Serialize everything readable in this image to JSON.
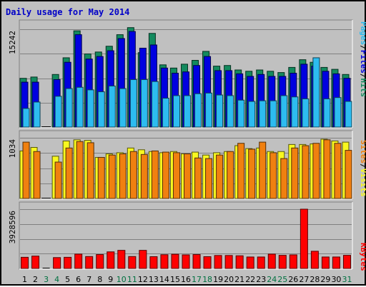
{
  "chart_data": {
    "type": "bar",
    "title": "Daily usage for May 2014",
    "categories": [
      "1",
      "2",
      "3",
      "4",
      "5",
      "6",
      "7",
      "8",
      "9",
      "10",
      "11",
      "12",
      "13",
      "14",
      "15",
      "16",
      "17",
      "18",
      "19",
      "20",
      "21",
      "22",
      "23",
      "24",
      "25",
      "26",
      "27",
      "28",
      "29",
      "30",
      "31"
    ],
    "weekend_days": [
      "3",
      "4",
      "10",
      "11",
      "17",
      "18",
      "24",
      "25",
      "31"
    ],
    "colors": {
      "hits": "#138a5e",
      "files": "#0000e0",
      "pages": "#2dbcf0",
      "visits": "#f8f820",
      "sites": "#f08010",
      "kbytes": "#ff0000",
      "weekend_label": "#007040",
      "weekday_label": "#000000"
    },
    "panels": [
      {
        "id": "hits_files_pages",
        "ytick_label": "15242",
        "ylim": [
          0,
          15242
        ],
        "legend": [
          "Pages",
          "/",
          "Files",
          "/",
          "Hits"
        ],
        "legend_colors": [
          "#2dbcf0",
          "#000000",
          "#0000e0",
          "#000000",
          "#138a5e"
        ],
        "series": [
          {
            "name": "Hits",
            "color": "#138a5e",
            "values": [
              7600,
              7800,
              0,
              8200,
              10800,
              15000,
              11400,
              11700,
              12600,
              14400,
              15500,
              11600,
              14600,
              9700,
              9200,
              9800,
              10400,
              11800,
              9500,
              9600,
              8900,
              8700,
              8900,
              8700,
              8500,
              9300,
              10500,
              10100,
              9300,
              9000,
              8200
            ]
          },
          {
            "name": "Files",
            "color": "#0000e0",
            "values": [
              7000,
              7000,
              0,
              7400,
              10100,
              14400,
              10600,
              11000,
              11900,
              13800,
              14900,
              12300,
              12800,
              9200,
              8400,
              8600,
              9600,
              11000,
              8800,
              8800,
              8300,
              7900,
              8200,
              7900,
              7900,
              8400,
              9800,
              9500,
              8700,
              8300,
              7600
            ]
          },
          {
            "name": "Pages",
            "color": "#2dbcf0",
            "values": [
              2900,
              3900,
              0,
              4800,
              6000,
              6200,
              5800,
              5500,
              6400,
              6000,
              7400,
              7400,
              7100,
              4500,
              4900,
              4900,
              5200,
              5300,
              5000,
              4900,
              4200,
              4000,
              4100,
              4100,
              4900,
              4700,
              4400,
              10800,
              4400,
              4600,
              4000
            ]
          }
        ]
      },
      {
        "id": "visits_sites",
        "ytick_label": "1034",
        "ylim": [
          0,
          1034
        ],
        "legend": [
          "Sites",
          "/",
          "Visits"
        ],
        "legend_colors": [
          "#f08010",
          "#000000",
          "#f8f820"
        ],
        "series": [
          {
            "name": "Visits",
            "color": "#f8f820",
            "values": [
              810,
              870,
              0,
              720,
              980,
              1000,
              990,
              700,
              760,
              780,
              860,
              830,
              800,
              780,
              800,
              760,
              790,
              740,
              780,
              800,
              900,
              850,
              860,
              800,
              800,
              920,
              920,
              930,
              1010,
              980,
              960
            ]
          },
          {
            "name": "Sites",
            "color": "#f08010",
            "values": [
              960,
              800,
              0,
              620,
              860,
              970,
              950,
              700,
              740,
              760,
              800,
              750,
              810,
              790,
              780,
              760,
              690,
              680,
              740,
              800,
              940,
              840,
              960,
              780,
              680,
              860,
              900,
              940,
              1000,
              940,
              820
            ]
          }
        ]
      },
      {
        "id": "kbytes",
        "ytick_label": "3928596",
        "ylim": [
          0,
          3928596
        ],
        "legend": [
          "KBytes"
        ],
        "legend_colors": [
          "#ff0000"
        ],
        "series": [
          {
            "name": "KBytes",
            "color": "#ff0000",
            "values": [
              740000,
              820000,
              0,
              720000,
              740000,
              950000,
              790000,
              920000,
              1100000,
              1200000,
              790000,
              1200000,
              780000,
              910000,
              940000,
              900000,
              920000,
              780000,
              860000,
              860000,
              840000,
              760000,
              760000,
              950000,
              870000,
              900000,
              3928596,
              1140000,
              760000,
              760000,
              870000
            ]
          }
        ]
      }
    ]
  }
}
